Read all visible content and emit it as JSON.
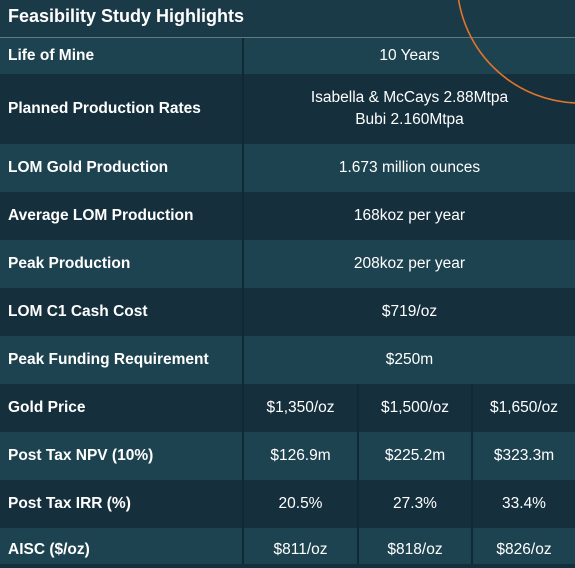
{
  "title": "Feasibility Study Highlights",
  "colors": {
    "background": "#132f3b",
    "row_light": "#1e4350",
    "row_dark": "#15303c",
    "accent_arc": "#e0742a"
  },
  "rows": [
    {
      "label": "Life of Mine",
      "value_lines": [
        "10 Years"
      ]
    },
    {
      "label": "Planned Production Rates",
      "value_lines": [
        "Isabella & McCays 2.88Mtpa",
        "Bubi 2.160Mtpa"
      ]
    },
    {
      "label": "LOM Gold Production",
      "value_lines": [
        "1.673 million ounces"
      ]
    },
    {
      "label": "Average LOM Production",
      "value_lines": [
        "168koz per year"
      ]
    },
    {
      "label": "Peak Production",
      "value_lines": [
        "208koz per year"
      ]
    },
    {
      "label": "LOM C1 Cash Cost",
      "value_lines": [
        "$719/oz"
      ]
    },
    {
      "label": "Peak Funding Requirement",
      "value_lines": [
        "$250m"
      ]
    },
    {
      "label": "Gold Price",
      "values": [
        "$1,350/oz",
        "$1,500/oz",
        "$1,650/oz"
      ]
    },
    {
      "label": "Post Tax NPV (10%)",
      "values": [
        "$126.9m",
        "$225.2m",
        "$323.3m"
      ]
    },
    {
      "label": "Post Tax IRR (%)",
      "values": [
        "20.5%",
        "27.3%",
        "33.4%"
      ]
    },
    {
      "label": "AISC ($/oz)",
      "values": [
        "$811/oz",
        "$818/oz",
        "$826/oz"
      ]
    }
  ]
}
